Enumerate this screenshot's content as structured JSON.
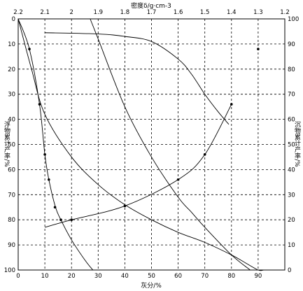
{
  "chart_data": {
    "type": "line",
    "title": "",
    "top_axis": {
      "label": "密度δ/g·cm-3",
      "ticks": [
        "2.2",
        "2.1",
        "2",
        "1.9",
        "1.8",
        "1.7",
        "1.6",
        "1.5",
        "1.4",
        "1.3",
        "1.2"
      ],
      "range": [
        2.2,
        1.2
      ]
    },
    "bottom_axis": {
      "label": "灰分/%",
      "ticks": [
        "0",
        "10",
        "20",
        "30",
        "40",
        "50",
        "60",
        "70",
        "80",
        "90"
      ],
      "range": [
        0,
        100
      ]
    },
    "left_axis": {
      "label": "浮物累计产率/%",
      "ticks": [
        "0",
        "10",
        "20",
        "30",
        "40",
        "50",
        "60",
        "70",
        "80",
        "90",
        "100"
      ],
      "range": [
        0,
        100
      ],
      "inverted": true
    },
    "right_axis": {
      "label": "沉物累计产率/%",
      "ticks": [
        "100",
        "90",
        "80",
        "70",
        "60",
        "50",
        "40",
        "30",
        "20",
        "10",
        "0"
      ],
      "range": [
        100,
        0
      ]
    },
    "grid": true,
    "series": [
      {
        "x": [
          0,
          4.2,
          8.0,
          10.0,
          11.5,
          14.0,
          16.0,
          20.0,
          25.0,
          28.0
        ],
        "y": [
          0,
          12,
          34,
          54,
          64,
          75,
          80,
          88,
          96,
          100
        ],
        "markers": [
          [
            4.2,
            12
          ],
          [
            8.0,
            34
          ],
          [
            10.0,
            54
          ],
          [
            11.5,
            64
          ],
          [
            13.8,
            75
          ],
          [
            16.0,
            80
          ]
        ]
      },
      {
        "x": [
          80.0,
          70.0,
          60.0,
          40.0,
          20.0,
          10.0
        ],
        "y": [
          34,
          54,
          64,
          74.5,
          80,
          83
        ],
        "markers": [
          [
            90,
            12
          ],
          [
            80,
            34
          ],
          [
            70,
            54
          ],
          [
            60,
            64
          ],
          [
            40,
            74.5
          ],
          [
            20,
            80
          ]
        ]
      },
      {
        "x": [
          0,
          5,
          10,
          20,
          30,
          40,
          50,
          60,
          70,
          80,
          85,
          90,
          92
        ],
        "y": [
          0,
          20,
          38,
          55,
          66,
          74,
          80,
          85,
          89,
          94,
          97,
          100,
          100
        ]
      },
      {
        "density": [
          1.93,
          1.9,
          1.8,
          1.7,
          1.6,
          1.55,
          1.5,
          1.4,
          1.33
        ],
        "y": [
          0,
          8,
          35,
          55,
          71,
          77,
          83,
          94,
          100
        ]
      },
      {
        "density": [
          2.1,
          1.9,
          1.8,
          1.7,
          1.6,
          1.55,
          1.5,
          1.45,
          1.41
        ],
        "y": [
          5.5,
          6,
          7,
          9,
          16,
          22,
          30,
          37,
          42
        ]
      }
    ]
  }
}
